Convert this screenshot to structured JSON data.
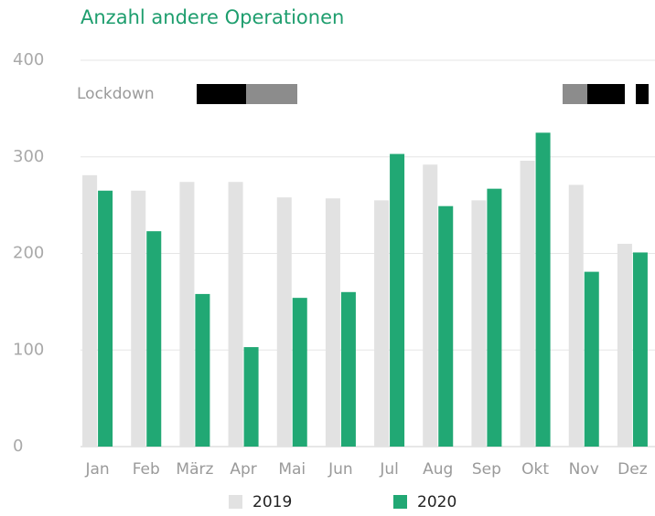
{
  "chart_data": {
    "type": "bar",
    "title": "Anzahl andere Operationen",
    "annotation": "Lockdown",
    "categories": [
      "Jan",
      "Feb",
      "März",
      "Apr",
      "Mai",
      "Jun",
      "Jul",
      "Aug",
      "Sep",
      "Okt",
      "Nov",
      "Dez"
    ],
    "series": [
      {
        "name": "2019",
        "color": "#e2e2e2",
        "values": [
          281,
          265,
          274,
          274,
          258,
          257,
          255,
          292,
          255,
          296,
          271,
          210
        ]
      },
      {
        "name": "2020",
        "color": "#21a874",
        "values": [
          265,
          223,
          158,
          103,
          154,
          160,
          303,
          249,
          267,
          325,
          181,
          201
        ]
      }
    ],
    "ylim": [
      0,
      400
    ],
    "yticks": [
      0,
      100,
      200,
      300,
      400
    ],
    "grid": true
  }
}
